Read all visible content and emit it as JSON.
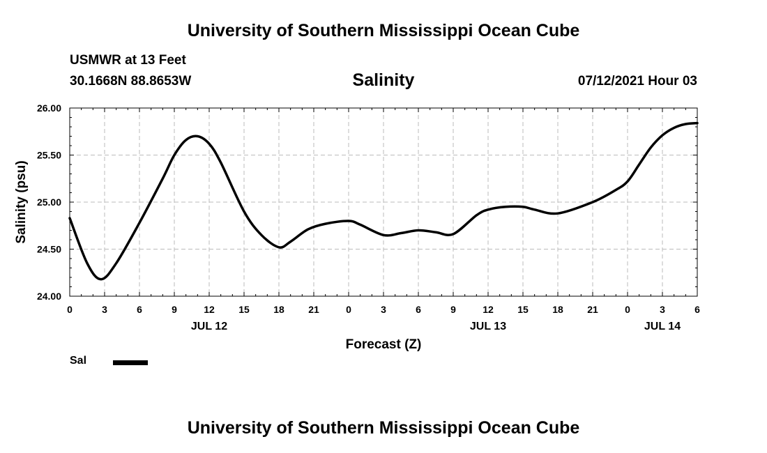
{
  "header": {
    "title": "University of Southern Mississippi Ocean Cube",
    "station": "USMWR at 13 Feet",
    "coordinates": "30.1668N  88.8653W",
    "chart_title": "Salinity",
    "datetime": "07/12/2021 Hour 03"
  },
  "legend": {
    "label": "Sal",
    "color": "#000000"
  },
  "footer": {
    "title": "University of Southern Mississippi Ocean Cube"
  },
  "chart_data": {
    "type": "line",
    "title": "Salinity",
    "xlabel": "Forecast (Z)",
    "ylabel": "Salinity (psu)",
    "ylim": [
      24.0,
      26.0
    ],
    "xlim": [
      0,
      54
    ],
    "grid": true,
    "x_ticks": [
      0,
      3,
      6,
      9,
      12,
      15,
      18,
      21,
      24,
      27,
      30,
      33,
      36,
      39,
      42,
      45,
      48,
      51,
      54
    ],
    "x_tick_labels": [
      "0",
      "3",
      "6",
      "9",
      "12",
      "15",
      "18",
      "21",
      "0",
      "3",
      "6",
      "9",
      "12",
      "15",
      "18",
      "21",
      "0",
      "3",
      "6"
    ],
    "y_ticks": [
      24.0,
      24.5,
      25.0,
      25.5,
      26.0
    ],
    "y_tick_labels": [
      "24.00",
      "24.50",
      "25.00",
      "25.50",
      "26.00"
    ],
    "date_labels": [
      {
        "x": 12,
        "label": "JUL 12"
      },
      {
        "x": 36,
        "label": "JUL 13"
      },
      {
        "x": 51,
        "label": "JUL 14"
      }
    ],
    "series": [
      {
        "name": "Sal",
        "color": "#000000",
        "x": [
          0,
          1.5,
          2.7,
          4,
          6,
          8,
          9,
          10,
          11,
          12,
          13,
          15,
          16.5,
          18,
          19,
          20.5,
          22,
          24,
          25,
          27,
          28.5,
          30,
          31.5,
          33,
          35,
          36,
          37.5,
          39,
          40,
          42,
          45,
          47,
          48,
          49,
          50,
          51,
          52,
          53,
          54
        ],
        "y": [
          24.83,
          24.35,
          24.18,
          24.35,
          24.78,
          25.25,
          25.5,
          25.66,
          25.7,
          25.62,
          25.42,
          24.9,
          24.65,
          24.52,
          24.58,
          24.71,
          24.77,
          24.8,
          24.76,
          24.65,
          24.67,
          24.7,
          24.68,
          24.66,
          24.86,
          24.92,
          24.95,
          24.95,
          24.92,
          24.88,
          25.0,
          25.13,
          25.22,
          25.4,
          25.58,
          25.71,
          25.79,
          25.83,
          25.84
        ]
      }
    ]
  }
}
